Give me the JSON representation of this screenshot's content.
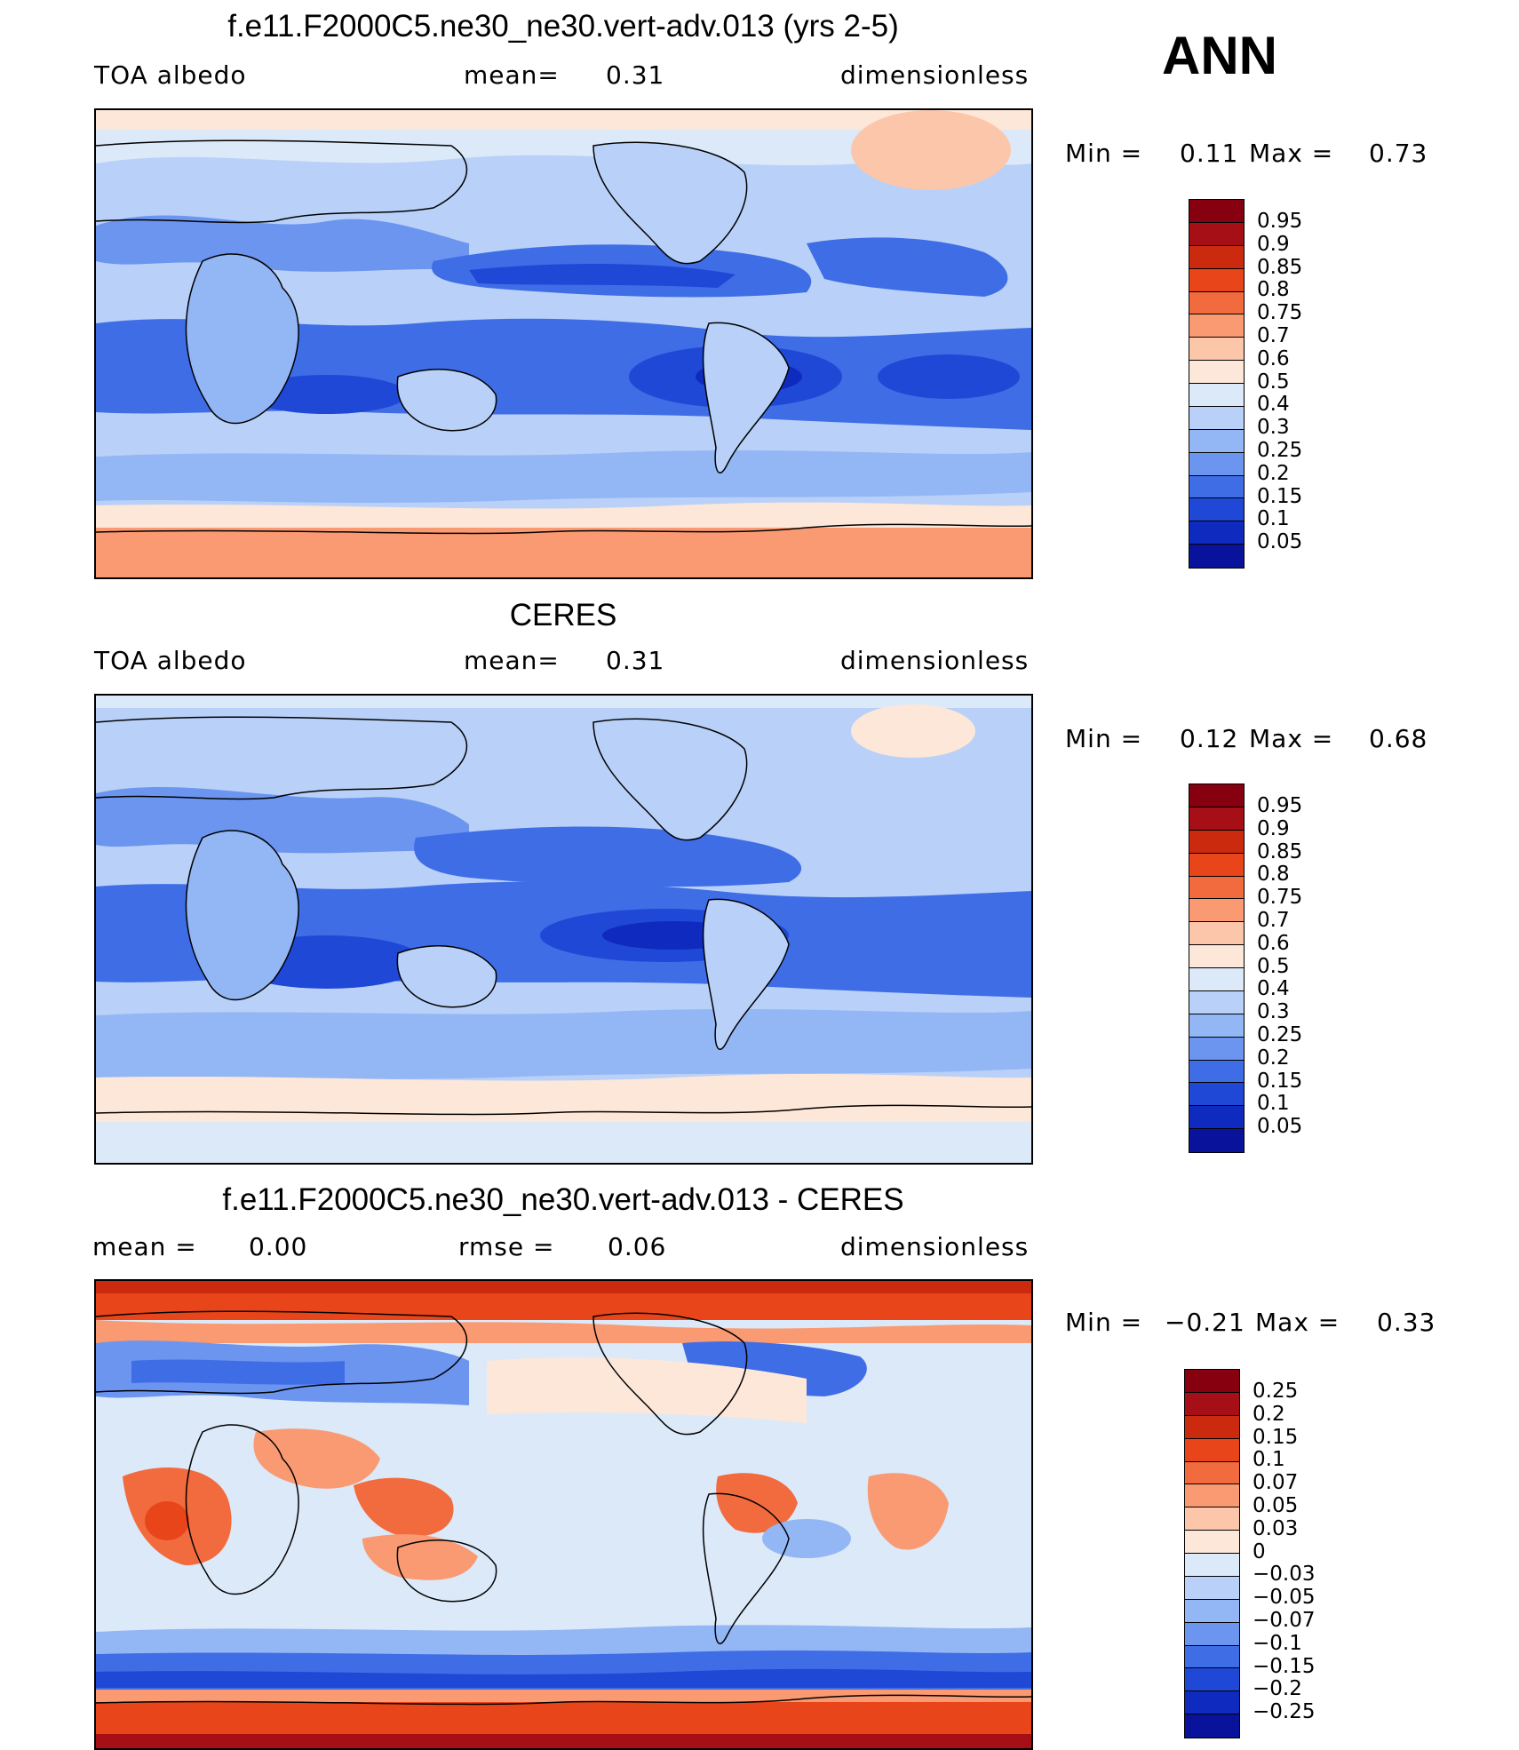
{
  "season": "ANN",
  "palette_levels_1": [
    "#87000f",
    "#a50f15",
    "#cb2a0e",
    "#e8461a",
    "#f26b3e",
    "#f99a73",
    "#fcc6aa",
    "#fde7d9",
    "#dce9f9",
    "#b9d1f8",
    "#93b6f4",
    "#6b95ef",
    "#3f6de6",
    "#1f48d6",
    "#0f2bbf",
    "#08129a"
  ],
  "palette_levels_diff": [
    "#87000f",
    "#a50f15",
    "#cb2a0e",
    "#e8461a",
    "#f26b3e",
    "#f99a73",
    "#fcc6aa",
    "#fde7d9",
    "#dce9f9",
    "#b9d1f8",
    "#93b6f4",
    "#6b95ef",
    "#3f6de6",
    "#1f48d6",
    "#0f2bbf",
    "#08129a"
  ],
  "panels": [
    {
      "title": "f.e11.F2000C5.ne30_ne30.vert-adv.013 (yrs 2-5)",
      "left": "TOA  albedo",
      "center_label": "mean=",
      "center_value": "0.31",
      "right": "dimensionless",
      "min_label": "Min  =",
      "min_value": "0.11",
      "max_label": "Max  =",
      "max_value": "0.73",
      "colorbar_ticks": [
        "0.95",
        "0.9",
        "0.85",
        "0.8",
        "0.75",
        "0.7",
        "0.6",
        "0.5",
        "0.4",
        "0.3",
        "0.25",
        "0.2",
        "0.15",
        "0.1",
        "0.05"
      ]
    },
    {
      "title": "CERES",
      "left": "TOA  albedo",
      "center_label": "mean=",
      "center_value": "0.31",
      "right": "dimensionless",
      "min_label": "Min  =",
      "min_value": "0.12",
      "max_label": "Max  =",
      "max_value": "0.68",
      "colorbar_ticks": [
        "0.95",
        "0.9",
        "0.85",
        "0.8",
        "0.75",
        "0.7",
        "0.6",
        "0.5",
        "0.4",
        "0.3",
        "0.25",
        "0.2",
        "0.15",
        "0.1",
        "0.05"
      ]
    },
    {
      "title": "f.e11.F2000C5.ne30_ne30.vert-adv.013 - CERES",
      "left_label": "mean  =",
      "left_value": "0.00",
      "center_label": "rmse  =",
      "center_value": "0.06",
      "right": "dimensionless",
      "min_label": "Min  =",
      "min_value": "−0.21",
      "max_label": "Max  =",
      "max_value": "0.33",
      "colorbar_ticks": [
        "0.25",
        "0.2",
        "0.15",
        "0.1",
        "0.07",
        "0.05",
        "0.03",
        "0",
        "−0.03",
        "−0.05",
        "−0.07",
        "−0.1",
        "−0.15",
        "−0.2",
        "−0.25"
      ]
    }
  ]
}
